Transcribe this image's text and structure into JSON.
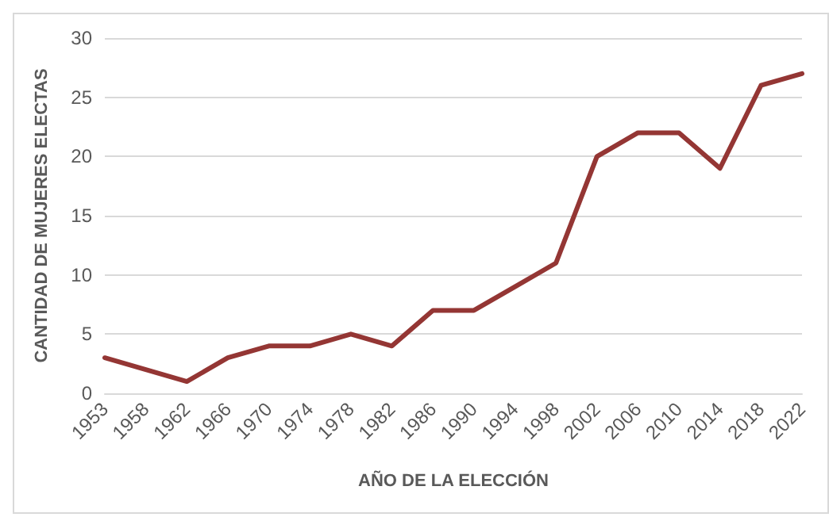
{
  "chart_data": {
    "type": "line",
    "xlabel": "AÑO DE LA ELECCIÓN",
    "ylabel": "CANTIDAD DE MUJERES ELECTAS",
    "categories": [
      "1953",
      "1958",
      "1962",
      "1966",
      "1970",
      "1974",
      "1978",
      "1982",
      "1986",
      "1990",
      "1994",
      "1998",
      "2002",
      "2006",
      "2010",
      "2014",
      "2018",
      "2022"
    ],
    "series": [
      {
        "color": "#943634",
        "values": [
          3,
          2,
          1,
          3,
          4,
          4,
          5,
          4,
          7,
          7,
          9,
          11,
          20,
          22,
          22,
          19,
          26,
          27
        ]
      }
    ],
    "ylim": [
      0,
      30
    ],
    "yticks": [
      0,
      5,
      10,
      15,
      20,
      25,
      30
    ],
    "grid": "y",
    "marker": "none",
    "line_style": "solid"
  }
}
